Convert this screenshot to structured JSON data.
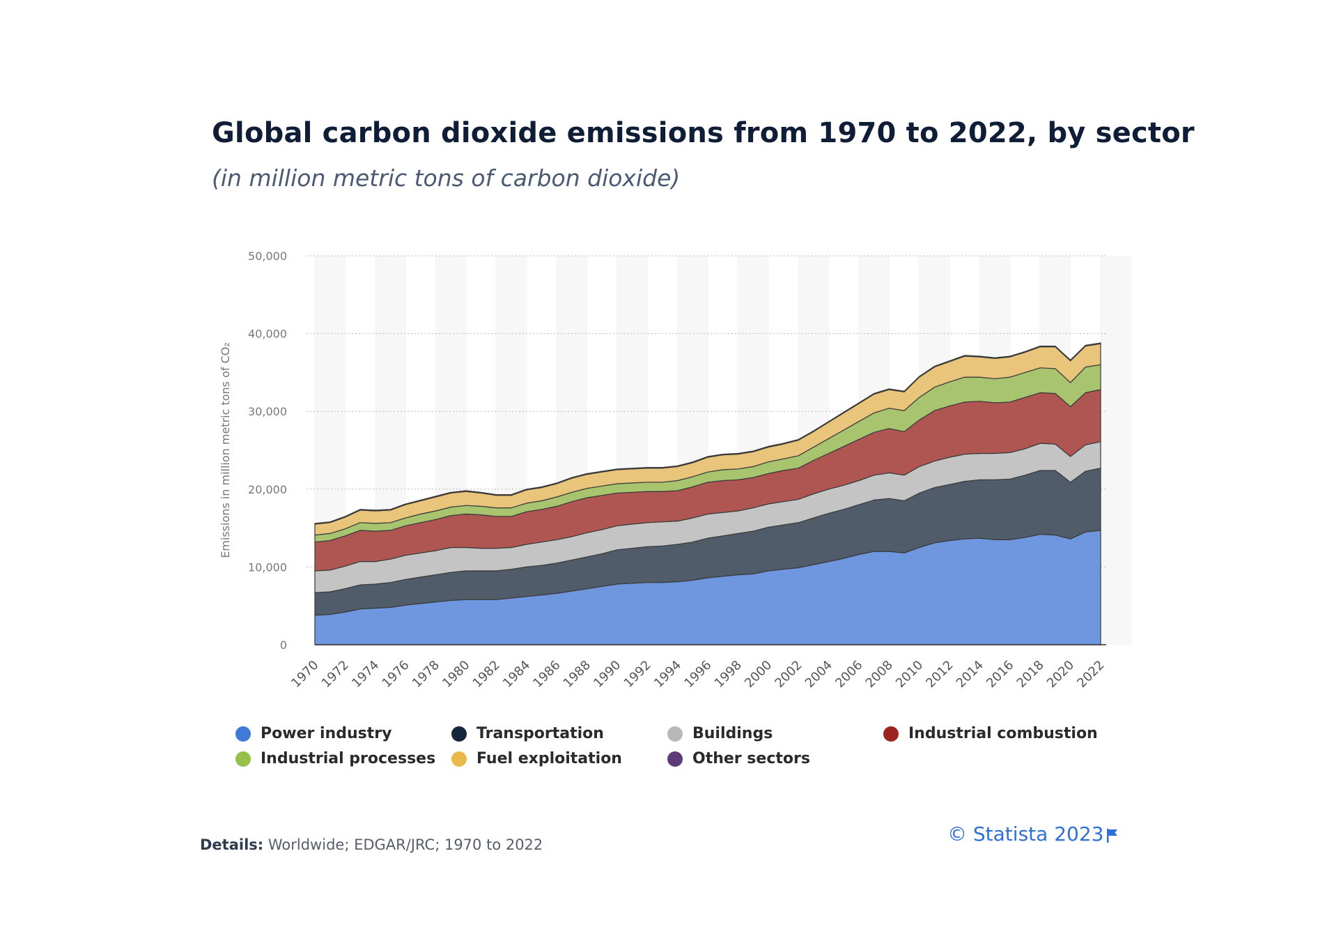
{
  "title": "Global carbon dioxide emissions from 1970 to 2022, by sector",
  "subtitle": "(in million metric tons of carbon dioxide)",
  "details": {
    "label": "Details:",
    "text": "Worldwide; EDGAR/JRC; 1970 to 2022"
  },
  "copyright": "© Statista 2023",
  "flag_icon": "flag-icon",
  "chart_data": {
    "type": "area",
    "stacked": true,
    "ylabel": "Emissions in million metric tons of CO₂",
    "ylim": [
      0,
      50000
    ],
    "yticks": [
      0,
      10000,
      20000,
      30000,
      40000,
      50000
    ],
    "ytick_labels": [
      "0",
      "10,000",
      "20,000",
      "30,000",
      "40,000",
      "50,000"
    ],
    "x": [
      1970,
      1971,
      1972,
      1973,
      1974,
      1975,
      1976,
      1977,
      1978,
      1979,
      1980,
      1981,
      1982,
      1983,
      1984,
      1985,
      1986,
      1987,
      1988,
      1989,
      1990,
      1991,
      1992,
      1993,
      1994,
      1995,
      1996,
      1997,
      1998,
      1999,
      2000,
      2001,
      2002,
      2003,
      2004,
      2005,
      2006,
      2007,
      2008,
      2009,
      2010,
      2011,
      2012,
      2013,
      2014,
      2015,
      2016,
      2017,
      2018,
      2019,
      2020,
      2021,
      2022
    ],
    "xtick_labels": [
      "1970",
      "1972",
      "1974",
      "1976",
      "1978",
      "1980",
      "1982",
      "1984",
      "1986",
      "1988",
      "1990",
      "1992",
      "1994",
      "1996",
      "1998",
      "2000",
      "2002",
      "2004",
      "2006",
      "2008",
      "2010",
      "2012",
      "2014",
      "2016",
      "2018",
      "2020",
      "2022"
    ],
    "grid": true,
    "legend_position": "bottom",
    "series": [
      {
        "name": "Power industry",
        "color": "#6f97e0",
        "values": [
          3800,
          3900,
          4200,
          4600,
          4700,
          4800,
          5100,
          5300,
          5500,
          5700,
          5800,
          5800,
          5800,
          6000,
          6200,
          6400,
          6600,
          6900,
          7200,
          7500,
          7800,
          7900,
          8000,
          8000,
          8100,
          8300,
          8600,
          8800,
          9000,
          9100,
          9500,
          9700,
          9900,
          10300,
          10700,
          11100,
          11600,
          12000,
          12000,
          11800,
          12500,
          13100,
          13400,
          13600,
          13700,
          13500,
          13500,
          13800,
          14200,
          14100,
          13600,
          14500,
          14700
        ]
      },
      {
        "name": "Transportation",
        "color": "#515c6b",
        "values": [
          2900,
          2900,
          3000,
          3100,
          3100,
          3200,
          3300,
          3400,
          3500,
          3600,
          3700,
          3700,
          3700,
          3700,
          3800,
          3800,
          3900,
          4000,
          4100,
          4200,
          4400,
          4500,
          4600,
          4700,
          4800,
          4900,
          5100,
          5200,
          5300,
          5500,
          5600,
          5700,
          5800,
          6000,
          6200,
          6300,
          6400,
          6600,
          6800,
          6700,
          7000,
          7100,
          7200,
          7400,
          7500,
          7700,
          7800,
          8000,
          8200,
          8300,
          7300,
          7800,
          8000
        ]
      },
      {
        "name": "Buildings",
        "color": "#c4c4c4",
        "values": [
          2800,
          2800,
          2900,
          3000,
          2900,
          3000,
          3100,
          3100,
          3100,
          3200,
          3000,
          2900,
          2900,
          2800,
          2900,
          3000,
          3000,
          3000,
          3100,
          3100,
          3100,
          3100,
          3100,
          3100,
          3000,
          3100,
          3100,
          3000,
          2900,
          3000,
          3000,
          3000,
          3000,
          3100,
          3100,
          3100,
          3100,
          3200,
          3300,
          3300,
          3400,
          3400,
          3500,
          3500,
          3400,
          3400,
          3400,
          3400,
          3500,
          3400,
          3300,
          3400,
          3400
        ]
      },
      {
        "name": "Industrial combustion",
        "color": "#b05652",
        "values": [
          3700,
          3800,
          3900,
          4000,
          3900,
          3700,
          3800,
          3900,
          4000,
          4100,
          4300,
          4300,
          4100,
          4000,
          4200,
          4200,
          4300,
          4500,
          4500,
          4400,
          4200,
          4100,
          4000,
          3900,
          3900,
          4000,
          4100,
          4100,
          4000,
          3900,
          3900,
          4000,
          4000,
          4300,
          4600,
          5000,
          5300,
          5500,
          5700,
          5600,
          6000,
          6500,
          6600,
          6700,
          6700,
          6500,
          6500,
          6600,
          6500,
          6500,
          6400,
          6700,
          6700
        ]
      },
      {
        "name": "Industrial processes",
        "color": "#a8c46f",
        "values": [
          900,
          900,
          900,
          1000,
          1000,
          1000,
          1000,
          1100,
          1100,
          1100,
          1100,
          1100,
          1100,
          1100,
          1100,
          1100,
          1200,
          1200,
          1200,
          1200,
          1200,
          1200,
          1200,
          1200,
          1300,
          1300,
          1300,
          1400,
          1400,
          1400,
          1500,
          1500,
          1600,
          1700,
          1900,
          2100,
          2300,
          2500,
          2600,
          2700,
          2900,
          3000,
          3100,
          3200,
          3100,
          3100,
          3200,
          3200,
          3200,
          3200,
          3100,
          3300,
          3200
        ]
      },
      {
        "name": "Fuel exploitation",
        "color": "#e9c47b",
        "values": [
          1400,
          1400,
          1500,
          1600,
          1600,
          1600,
          1700,
          1700,
          1800,
          1800,
          1800,
          1700,
          1600,
          1600,
          1700,
          1700,
          1700,
          1800,
          1800,
          1800,
          1800,
          1800,
          1800,
          1800,
          1800,
          1800,
          1900,
          1900,
          1900,
          1900,
          1900,
          1900,
          2000,
          2000,
          2100,
          2200,
          2300,
          2400,
          2400,
          2400,
          2600,
          2600,
          2600,
          2700,
          2600,
          2600,
          2600,
          2600,
          2700,
          2800,
          2800,
          2700,
          2700
        ]
      },
      {
        "name": "Other sectors",
        "color": "#5e3a7a",
        "values": [
          100,
          100,
          100,
          100,
          100,
          100,
          100,
          100,
          100,
          100,
          100,
          100,
          100,
          100,
          100,
          100,
          100,
          100,
          100,
          100,
          100,
          100,
          100,
          100,
          100,
          100,
          100,
          100,
          100,
          100,
          100,
          100,
          100,
          100,
          100,
          100,
          100,
          100,
          100,
          100,
          100,
          100,
          100,
          100,
          100,
          100,
          100,
          100,
          100,
          100,
          100,
          100,
          100
        ]
      }
    ],
    "legend_colors": {
      "Power industry": "#3f7ad8",
      "Transportation": "#16263c",
      "Buildings": "#b8b8b8",
      "Industrial combustion": "#9c2320",
      "Industrial processes": "#96c04a",
      "Fuel exploitation": "#ebb94a",
      "Other sectors": "#5e3a7a"
    }
  }
}
